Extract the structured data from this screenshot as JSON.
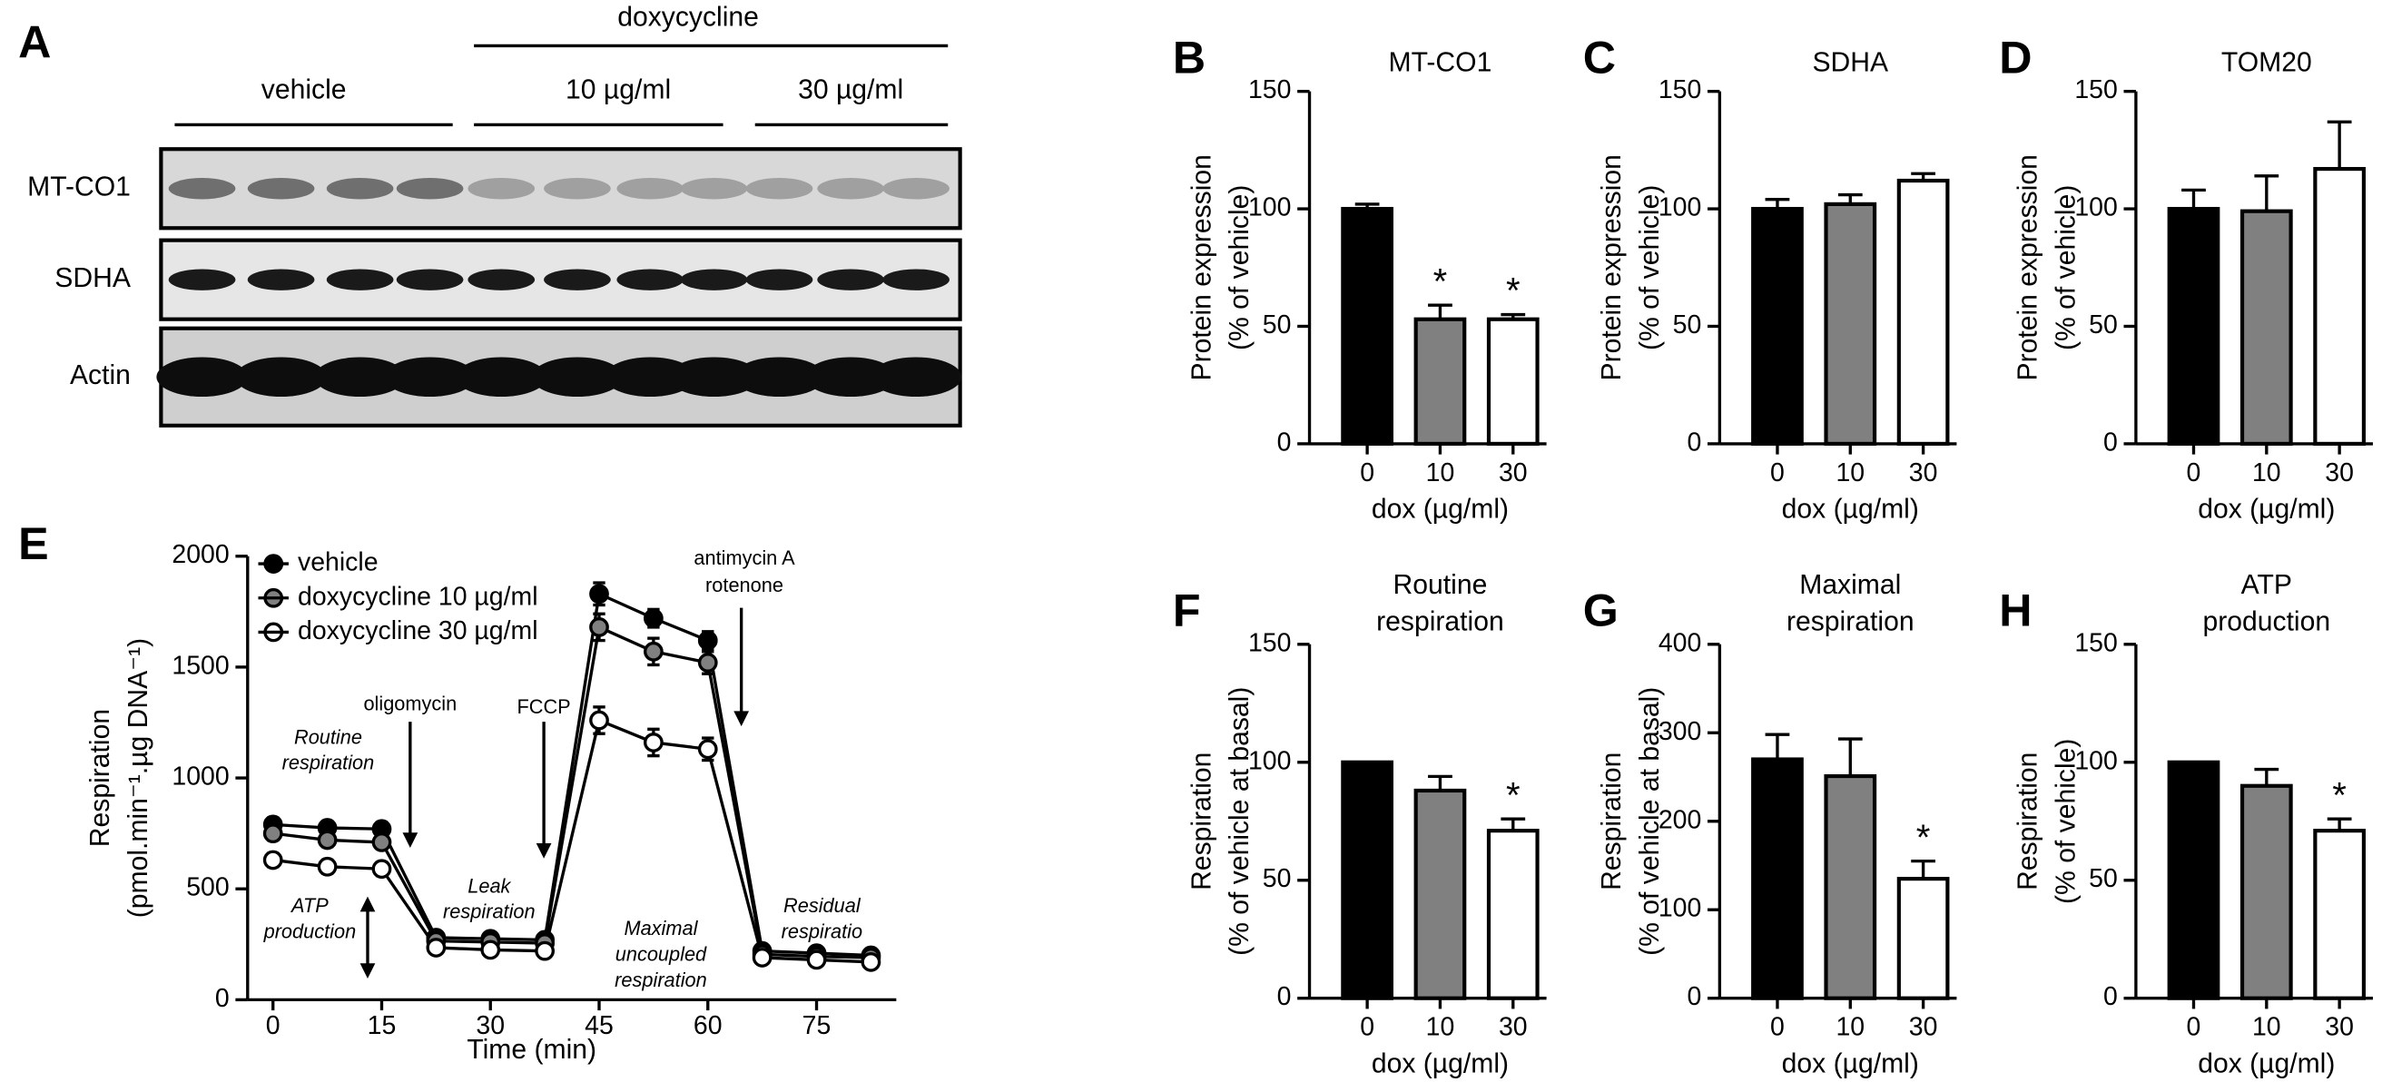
{
  "blot": {
    "panel": "A",
    "header": "doxycycline",
    "groups": [
      "vehicle",
      "10 µg/ml",
      "30 µg/ml"
    ],
    "rows": [
      "MT-CO1",
      "SDHA",
      "Actin"
    ]
  },
  "chart_data": [
    {
      "panel": "B",
      "type": "bar",
      "title": [
        "MT-CO1"
      ],
      "ylabel": [
        "Protein expression",
        "(% of vehicle)"
      ],
      "xlabel": "dox (µg/ml)",
      "categories": [
        "0",
        "10",
        "30"
      ],
      "values": [
        100,
        53,
        53
      ],
      "errors": [
        2,
        6,
        2
      ],
      "significance": [
        null,
        "*",
        "*"
      ],
      "colors": [
        "#000000",
        "#808080",
        "#ffffff"
      ],
      "ylim": [
        0,
        150
      ],
      "yticks": [
        0,
        50,
        100,
        150
      ]
    },
    {
      "panel": "C",
      "type": "bar",
      "title": [
        "SDHA"
      ],
      "ylabel": [
        "Protein expression",
        "(% of vehicle)"
      ],
      "xlabel": "dox (µg/ml)",
      "categories": [
        "0",
        "10",
        "30"
      ],
      "values": [
        100,
        102,
        112
      ],
      "errors": [
        4,
        4,
        3
      ],
      "significance": [
        null,
        null,
        null
      ],
      "colors": [
        "#000000",
        "#808080",
        "#ffffff"
      ],
      "ylim": [
        0,
        150
      ],
      "yticks": [
        0,
        50,
        100,
        150
      ]
    },
    {
      "panel": "D",
      "type": "bar",
      "title": [
        "TOM20"
      ],
      "ylabel": [
        "Protein expression",
        "(% of vehicle)"
      ],
      "xlabel": "dox (µg/ml)",
      "categories": [
        "0",
        "10",
        "30"
      ],
      "values": [
        100,
        99,
        117
      ],
      "errors": [
        8,
        15,
        20
      ],
      "significance": [
        null,
        null,
        null
      ],
      "colors": [
        "#000000",
        "#808080",
        "#ffffff"
      ],
      "ylim": [
        0,
        150
      ],
      "yticks": [
        0,
        50,
        100,
        150
      ]
    },
    {
      "panel": "E",
      "type": "line",
      "ylabel": [
        "Respiration",
        "(pmol.min⁻¹.µg DNA⁻¹)"
      ],
      "xlabel": "Time (min)",
      "x": [
        0,
        7.5,
        15,
        22.5,
        30,
        37.5,
        45,
        52.5,
        60,
        67.5,
        75,
        82.5
      ],
      "xlim": [
        -3.5,
        86
      ],
      "xticks": [
        0,
        15,
        30,
        45,
        60,
        75
      ],
      "ylim": [
        0,
        2000
      ],
      "yticks": [
        0,
        500,
        1000,
        1500,
        2000
      ],
      "legend": "upper left",
      "series": [
        {
          "name": "vehicle",
          "color": "#000000",
          "values": [
            790,
            775,
            770,
            280,
            275,
            270,
            1830,
            1720,
            1620,
            220,
            210,
            200
          ],
          "errors": [
            30,
            30,
            30,
            20,
            20,
            20,
            50,
            40,
            40,
            15,
            15,
            15
          ]
        },
        {
          "name": "doxycycline 10 µg/ml",
          "color": "#808080",
          "values": [
            750,
            720,
            710,
            265,
            260,
            255,
            1680,
            1570,
            1520,
            205,
            195,
            190
          ],
          "errors": [
            30,
            30,
            30,
            20,
            20,
            20,
            60,
            60,
            50,
            15,
            15,
            15
          ]
        },
        {
          "name": "doxycycline 30 µg/ml",
          "color": "#ffffff",
          "values": [
            630,
            600,
            590,
            235,
            225,
            220,
            1260,
            1160,
            1130,
            190,
            180,
            170
          ],
          "errors": [
            30,
            30,
            30,
            20,
            20,
            20,
            60,
            60,
            50,
            15,
            15,
            15
          ]
        }
      ],
      "injections": [
        [
          "oligomycin"
        ],
        [
          "FCCP"
        ],
        [
          "antimycin A",
          "rotenone"
        ]
      ],
      "phase_labels": [
        [
          "Routine",
          "respiration"
        ],
        [
          "ATP",
          "production"
        ],
        [
          "Leak",
          "respiration"
        ],
        [
          "Maximal",
          "uncoupled",
          "respiration"
        ],
        [
          "Residual",
          "respiratio"
        ]
      ]
    },
    {
      "panel": "F",
      "type": "bar",
      "title": [
        "Routine",
        "respiration"
      ],
      "ylabel": [
        "Respiration",
        "(% of vehicle at basal)"
      ],
      "xlabel": "dox (µg/ml)",
      "categories": [
        "0",
        "10",
        "30"
      ],
      "values": [
        100,
        88,
        71
      ],
      "errors": [
        0,
        6,
        5
      ],
      "significance": [
        null,
        null,
        "*"
      ],
      "colors": [
        "#000000",
        "#808080",
        "#ffffff"
      ],
      "ylim": [
        0,
        150
      ],
      "yticks": [
        0,
        50,
        100,
        150
      ]
    },
    {
      "panel": "G",
      "type": "bar",
      "title": [
        "Maximal",
        "respiration"
      ],
      "ylabel": [
        "Respiration",
        "(% of vehicle at basal)"
      ],
      "xlabel": "dox (µg/ml)",
      "categories": [
        "0",
        "10",
        "30"
      ],
      "values": [
        270,
        251,
        135
      ],
      "errors": [
        28,
        42,
        20
      ],
      "significance": [
        null,
        null,
        "*"
      ],
      "colors": [
        "#000000",
        "#808080",
        "#ffffff"
      ],
      "ylim": [
        0,
        400
      ],
      "yticks": [
        0,
        100,
        200,
        300,
        400
      ]
    },
    {
      "panel": "H",
      "type": "bar",
      "title": [
        "ATP",
        "production"
      ],
      "ylabel": [
        "Respiration",
        "(% of vehicle)"
      ],
      "xlabel": "dox (µg/ml)",
      "categories": [
        "0",
        "10",
        "30"
      ],
      "values": [
        100,
        90,
        71
      ],
      "errors": [
        0,
        7,
        5
      ],
      "significance": [
        null,
        null,
        "*"
      ],
      "colors": [
        "#000000",
        "#808080",
        "#ffffff"
      ],
      "ylim": [
        0,
        150
      ],
      "yticks": [
        0,
        50,
        100,
        150
      ]
    }
  ]
}
